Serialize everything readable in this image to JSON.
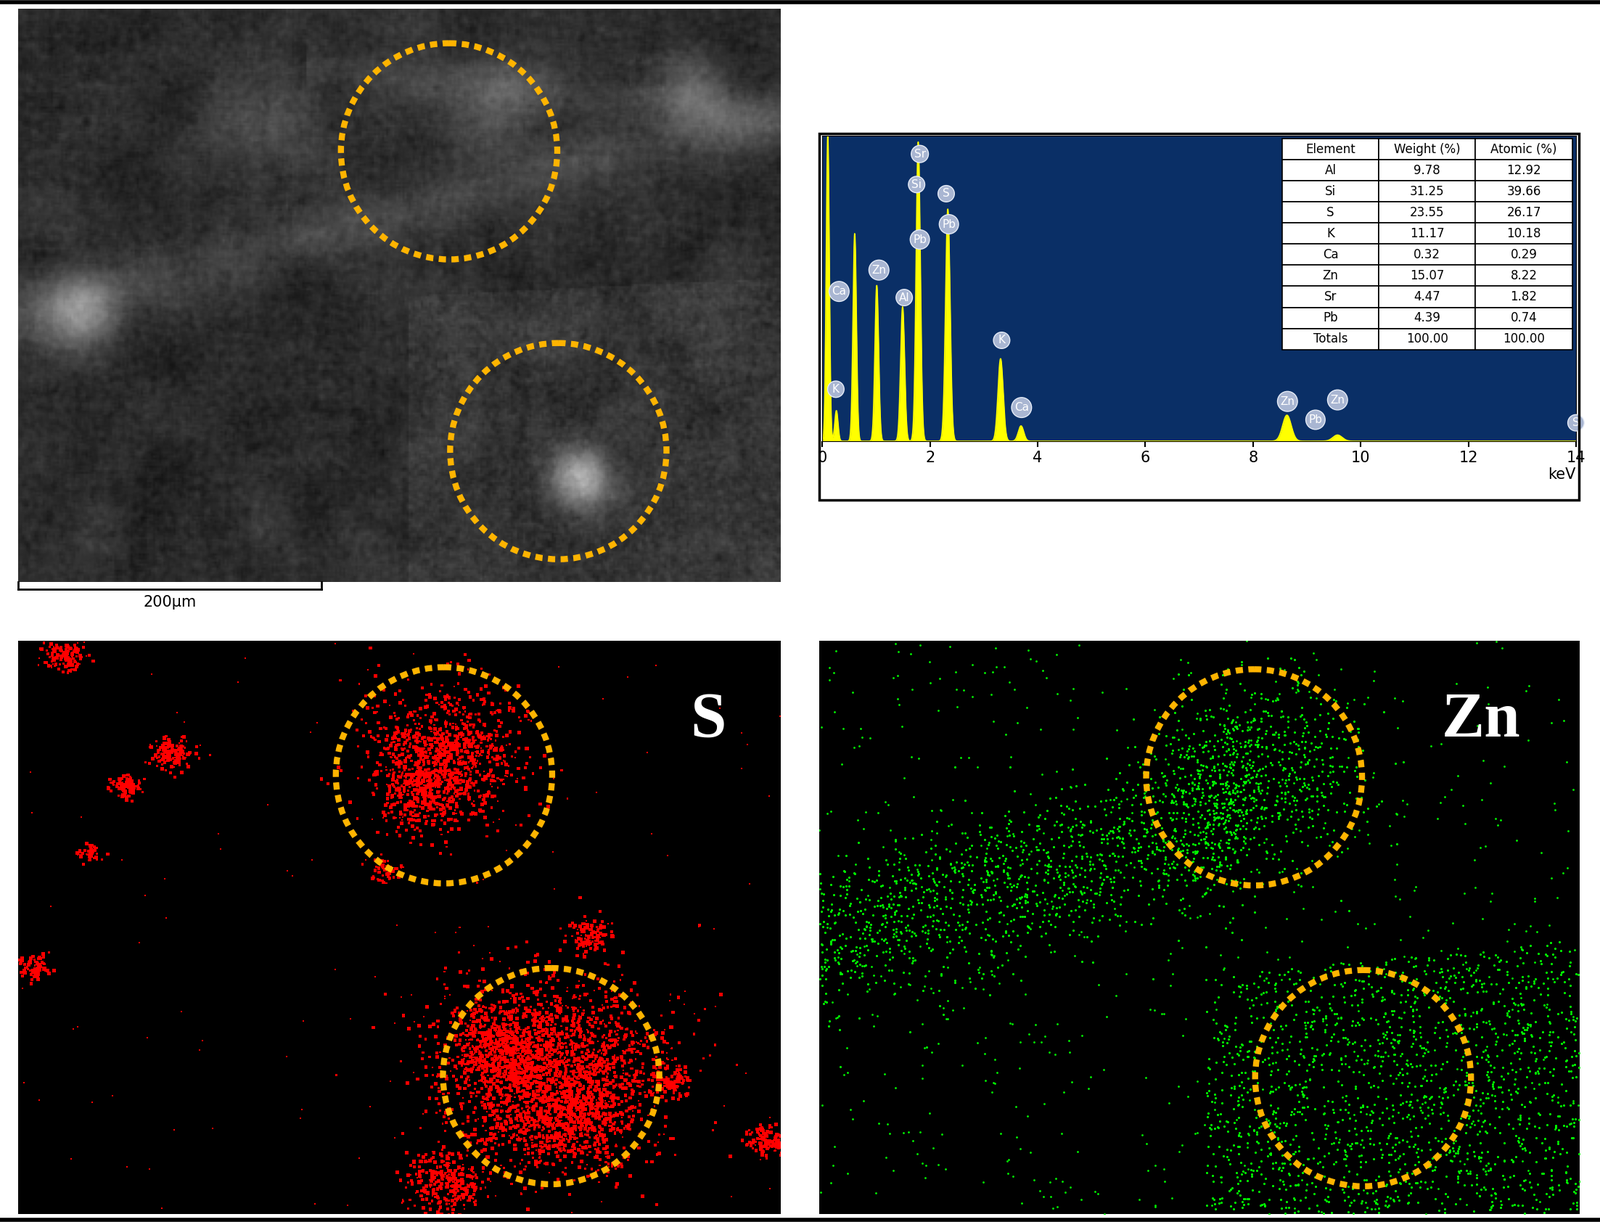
{
  "sem_image": {
    "scale_bar": "200µm"
  },
  "chart_data": {
    "type": "area",
    "x_label": "keV",
    "color": "#ffff00",
    "xlim": [
      0,
      14
    ],
    "xticks": [
      0,
      2,
      4,
      6,
      8,
      10,
      12,
      14
    ],
    "ylim": [
      0,
      100
    ],
    "tick_labels": "x",
    "x": [
      0.1,
      0.26,
      0.6,
      1.01,
      1.49,
      1.78,
      2.33,
      3.31,
      3.69,
      8.63,
      9.57
    ],
    "values": [
      100,
      10,
      68,
      51,
      44,
      98,
      76,
      27,
      5,
      8.5,
      2
    ],
    "annotations": [
      {
        "text": "Sr",
        "x": 1.81,
        "y": 94
      },
      {
        "text": "Si",
        "x": 1.75,
        "y": 84
      },
      {
        "text": "S",
        "x": 2.3,
        "y": 81
      },
      {
        "text": "Pb",
        "x": 2.35,
        "y": 71
      },
      {
        "text": "Pb",
        "x": 1.81,
        "y": 66
      },
      {
        "text": "Zn",
        "x": 1.05,
        "y": 56
      },
      {
        "text": "Al",
        "x": 1.52,
        "y": 47
      },
      {
        "text": "Ca",
        "x": 0.31,
        "y": 49
      },
      {
        "text": "K",
        "x": 3.33,
        "y": 33
      },
      {
        "text": "K",
        "x": 0.25,
        "y": 17
      },
      {
        "text": "Ca",
        "x": 3.7,
        "y": 11
      },
      {
        "text": "Zn",
        "x": 8.64,
        "y": 13
      },
      {
        "text": "Zn",
        "x": 9.57,
        "y": 13.5
      },
      {
        "text": "Pb",
        "x": 9.16,
        "y": 7
      },
      {
        "text": "S",
        "x": 14.0,
        "y": 6
      }
    ]
  },
  "table": {
    "columns": [
      "Element",
      "Weight (%)",
      "Atomic (%)"
    ],
    "rows": [
      [
        "Al",
        9.78,
        12.92
      ],
      [
        "Si",
        31.25,
        39.66
      ],
      [
        "S",
        23.55,
        26.17
      ],
      [
        "K",
        11.17,
        10.18
      ],
      [
        "Ca",
        0.32,
        0.29
      ],
      [
        "Zn",
        15.07,
        8.22
      ],
      [
        "Sr",
        4.47,
        1.82
      ],
      [
        "Pb",
        4.39,
        0.74
      ],
      [
        "Totals",
        100.0,
        100.0
      ]
    ]
  },
  "maps": [
    {
      "label": "S",
      "color": "#ff0000"
    },
    {
      "label": "Zn",
      "color": "#00ff00"
    }
  ]
}
